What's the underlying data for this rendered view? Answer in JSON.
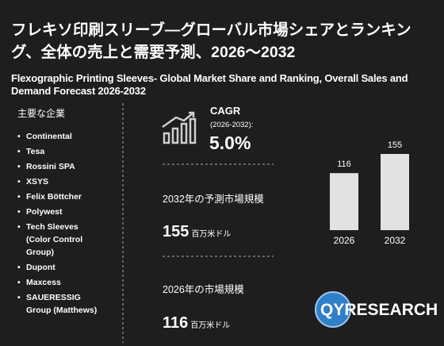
{
  "header": {
    "title": "フレキソ印刷スリーブ―グローバル市場シェアとランキング、全体の売上と需要予測、2026～2032",
    "subtitle": "Flexographic Printing Sleeves- Global Market Share and Ranking, Overall Sales and Demand Forecast 2026-2032"
  },
  "companies": {
    "heading": "主要な企業",
    "items": [
      "Continental",
      "Tesa",
      "Rossini SPA",
      "XSYS",
      "Felix Böttcher",
      "Polywest",
      "Tech Sleeves (Color Control Group)",
      "Dupont",
      "Maxcess",
      "SAUERESSIG Group (Matthews)"
    ]
  },
  "cagr": {
    "label": "CAGR",
    "period": "(2026-2032):",
    "value": "5.0%"
  },
  "forecast": {
    "label": "2032年の予測市場規模",
    "value": 155,
    "unit": "百万米ドル"
  },
  "current": {
    "label": "2026年の市場規模",
    "value": 116,
    "unit": "百万米ドル"
  },
  "chart_data": {
    "type": "bar",
    "categories": [
      "2026",
      "2032"
    ],
    "values": [
      116,
      155
    ],
    "color": "#e2e2e2"
  },
  "logo": "QYRESEARCH"
}
